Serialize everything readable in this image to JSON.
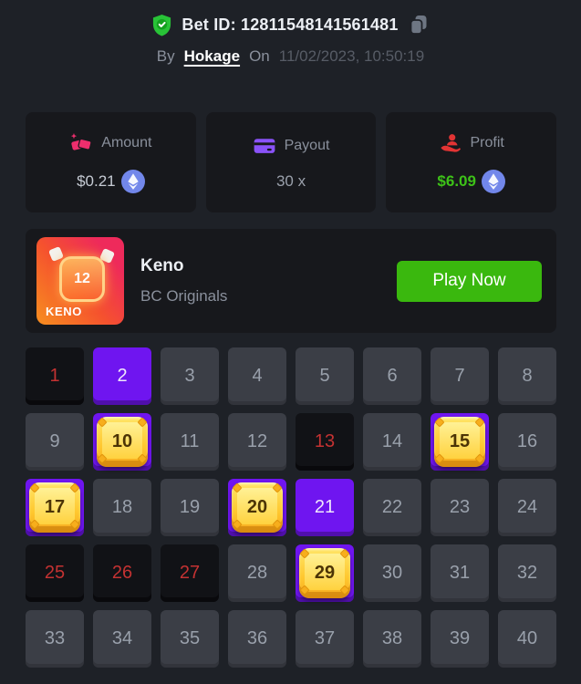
{
  "header": {
    "bet_id": "Bet ID: 12811548141561481",
    "by_label": "By",
    "username": "Hokage",
    "on_label": "On",
    "timestamp": "11/02/2023, 10:50:19"
  },
  "stats": [
    {
      "label": "Amount",
      "value": "$0.21",
      "icon": "money-icon",
      "currency": "ethereum"
    },
    {
      "label": "Payout",
      "value": "30 x",
      "icon": "credit-card-icon",
      "currency": null
    },
    {
      "label": "Profit",
      "value": "$6.09",
      "icon": "hand-profit-icon",
      "currency": "ethereum"
    }
  ],
  "game": {
    "title": "Keno",
    "provider": "BC Originals",
    "play_button": "Play Now",
    "thumbnail_label": "KENO",
    "thumbnail_number": "12"
  },
  "board": {
    "total": 40,
    "columns": 8,
    "rows": 5,
    "miss_numbers": [
      1,
      13,
      25,
      26,
      27
    ],
    "picked_numbers": [
      2,
      21
    ],
    "hit_numbers": [
      10,
      15,
      17,
      20,
      29
    ]
  },
  "colors": {
    "page_background": "#1e2127",
    "card_background": "#17181c",
    "accent_purple": "#6f15f0",
    "miss_red": "#c43232",
    "profit_green": "#3dc218",
    "play_green": "#3ab80e",
    "eth_coin_blue": "#7287ea",
    "amount_pink": "#ed2e6d",
    "payout_purple": "#8a52f8",
    "profit_icon_red": "#e23434",
    "gem_gold": "#ffcf3d",
    "verified_green": "#28c337"
  }
}
